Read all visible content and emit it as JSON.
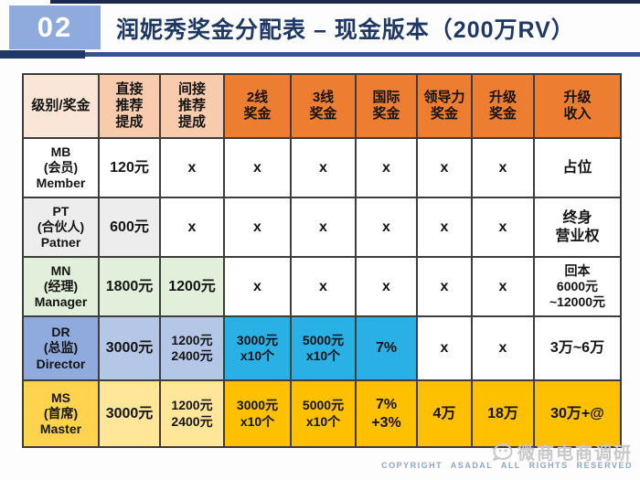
{
  "header": {
    "number": "02",
    "title": "润妮秀奖金分配表 – 现金版本（200万RV）",
    "number_box_color": "#8faadc",
    "title_color": "#1f3864",
    "line_color": "#34548b"
  },
  "table": {
    "border_color": "#3d3d3d",
    "header_cells": [
      {
        "text": "级别/奖金",
        "bg": "#fbe5d6"
      },
      {
        "text": "直接\n推荐\n提成",
        "bg": "#f8cbad"
      },
      {
        "text": "间接\n推荐\n提成",
        "bg": "#f8cbad"
      },
      {
        "text": "2线\n奖金",
        "bg": "#ed7d31"
      },
      {
        "text": "3线\n奖金",
        "bg": "#ed7d31"
      },
      {
        "text": "国际\n奖金",
        "bg": "#ed7d31"
      },
      {
        "text": "领导力\n奖金",
        "bg": "#ed7d31"
      },
      {
        "text": "升级\n奖金",
        "bg": "#ed7d31"
      },
      {
        "text": "升级\n收入",
        "bg": "#ed7d31"
      }
    ],
    "rows": [
      {
        "level": "MB",
        "cells": [
          {
            "text": "MB\n(会员)\nMember",
            "bg": "#ffffff"
          },
          {
            "text": "120元",
            "bg": "#ffffff"
          },
          {
            "text": "x",
            "bg": "#ffffff"
          },
          {
            "text": "x",
            "bg": "#ffffff"
          },
          {
            "text": "x",
            "bg": "#ffffff"
          },
          {
            "text": "x",
            "bg": "#ffffff"
          },
          {
            "text": "x",
            "bg": "#ffffff"
          },
          {
            "text": "x",
            "bg": "#ffffff"
          },
          {
            "text": "占位",
            "bg": "#ffffff"
          }
        ]
      },
      {
        "level": "PT",
        "cells": [
          {
            "text": "PT\n(合伙人)\nPatner",
            "bg": "#ededed"
          },
          {
            "text": "600元",
            "bg": "#ededed"
          },
          {
            "text": "x",
            "bg": "#ffffff"
          },
          {
            "text": "x",
            "bg": "#ffffff"
          },
          {
            "text": "x",
            "bg": "#ffffff"
          },
          {
            "text": "x",
            "bg": "#ffffff"
          },
          {
            "text": "x",
            "bg": "#ffffff"
          },
          {
            "text": "x",
            "bg": "#ffffff"
          },
          {
            "text": "终身\n营业权",
            "bg": "#ffffff"
          }
        ]
      },
      {
        "level": "MN",
        "cells": [
          {
            "text": "MN\n(经理)\nManager",
            "bg": "#e2efda"
          },
          {
            "text": "1800元",
            "bg": "#e2efda"
          },
          {
            "text": "1200元",
            "bg": "#e2efda"
          },
          {
            "text": "x",
            "bg": "#ffffff"
          },
          {
            "text": "x",
            "bg": "#ffffff"
          },
          {
            "text": "x",
            "bg": "#ffffff"
          },
          {
            "text": "x",
            "bg": "#ffffff"
          },
          {
            "text": "x",
            "bg": "#ffffff"
          },
          {
            "text": "回本\n6000元\n~12000元",
            "bg": "#ffffff"
          }
        ]
      },
      {
        "level": "DR",
        "cells": [
          {
            "text": "DR\n(总监)\nDirector",
            "bg": "#8faadc"
          },
          {
            "text": "3000元",
            "bg": "#b4c7e7"
          },
          {
            "text": "1200元\n2400元",
            "bg": "#b4c7e7"
          },
          {
            "text": "3000元\nx10个",
            "bg": "#29b1e6"
          },
          {
            "text": "5000元\nx10个",
            "bg": "#29b1e6"
          },
          {
            "text": "7%",
            "bg": "#29b1e6"
          },
          {
            "text": "x",
            "bg": "#ffffff"
          },
          {
            "text": "x",
            "bg": "#ffffff"
          },
          {
            "text": "3万~6万",
            "bg": "#ffffff"
          }
        ]
      },
      {
        "level": "MS",
        "cells": [
          {
            "text": "MS\n(首席)\nMaster",
            "bg": "#ffd34d"
          },
          {
            "text": "3000元",
            "bg": "#ffe699"
          },
          {
            "text": "1200元\n2400元",
            "bg": "#ffe699"
          },
          {
            "text": "3000元\nx10个",
            "bg": "#ffc000"
          },
          {
            "text": "5000元\nx10个",
            "bg": "#ffc000"
          },
          {
            "text": "7%\n+3%",
            "bg": "#ffc000"
          },
          {
            "text": "4万",
            "bg": "#ffc000"
          },
          {
            "text": "18万",
            "bg": "#ffc000"
          },
          {
            "text": "30万+@",
            "bg": "#ffc000"
          }
        ]
      }
    ]
  },
  "footer": {
    "watermark": "微商电商调研",
    "copyright": "COPYRIGHT  ASADAL  ALL RIGHTS RESERVED",
    "watermark_color": "#c8c8c8",
    "copyright_color": "#8fa6c4"
  }
}
